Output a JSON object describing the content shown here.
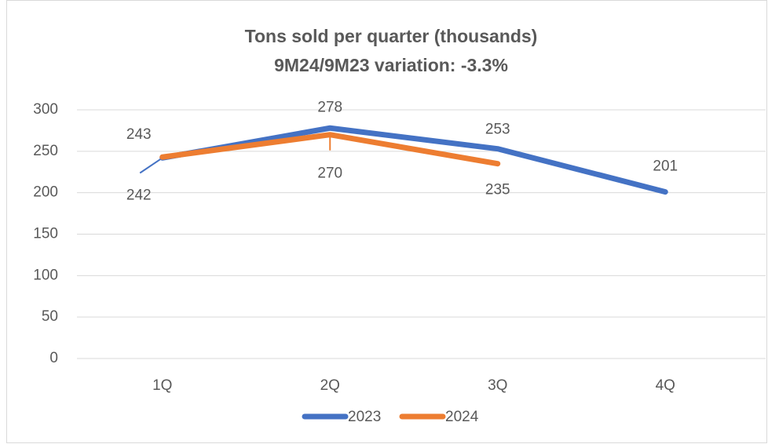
{
  "chart_data": {
    "type": "line",
    "title": "Tons sold per quarter (thousands)",
    "subtitle": "9M24/9M23 variation: -3.3%",
    "categories": [
      "1Q",
      "2Q",
      "3Q",
      "4Q"
    ],
    "series": [
      {
        "name": "2023",
        "color": "#4472c4",
        "values": [
          242,
          278,
          253,
          201
        ]
      },
      {
        "name": "2024",
        "color": "#ed7d31",
        "values": [
          243,
          270,
          235,
          null
        ]
      }
    ],
    "ylim": [
      0,
      300
    ],
    "yticks": [
      0,
      50,
      100,
      150,
      200,
      250,
      300
    ],
    "grid": true,
    "legend": "bottom"
  }
}
